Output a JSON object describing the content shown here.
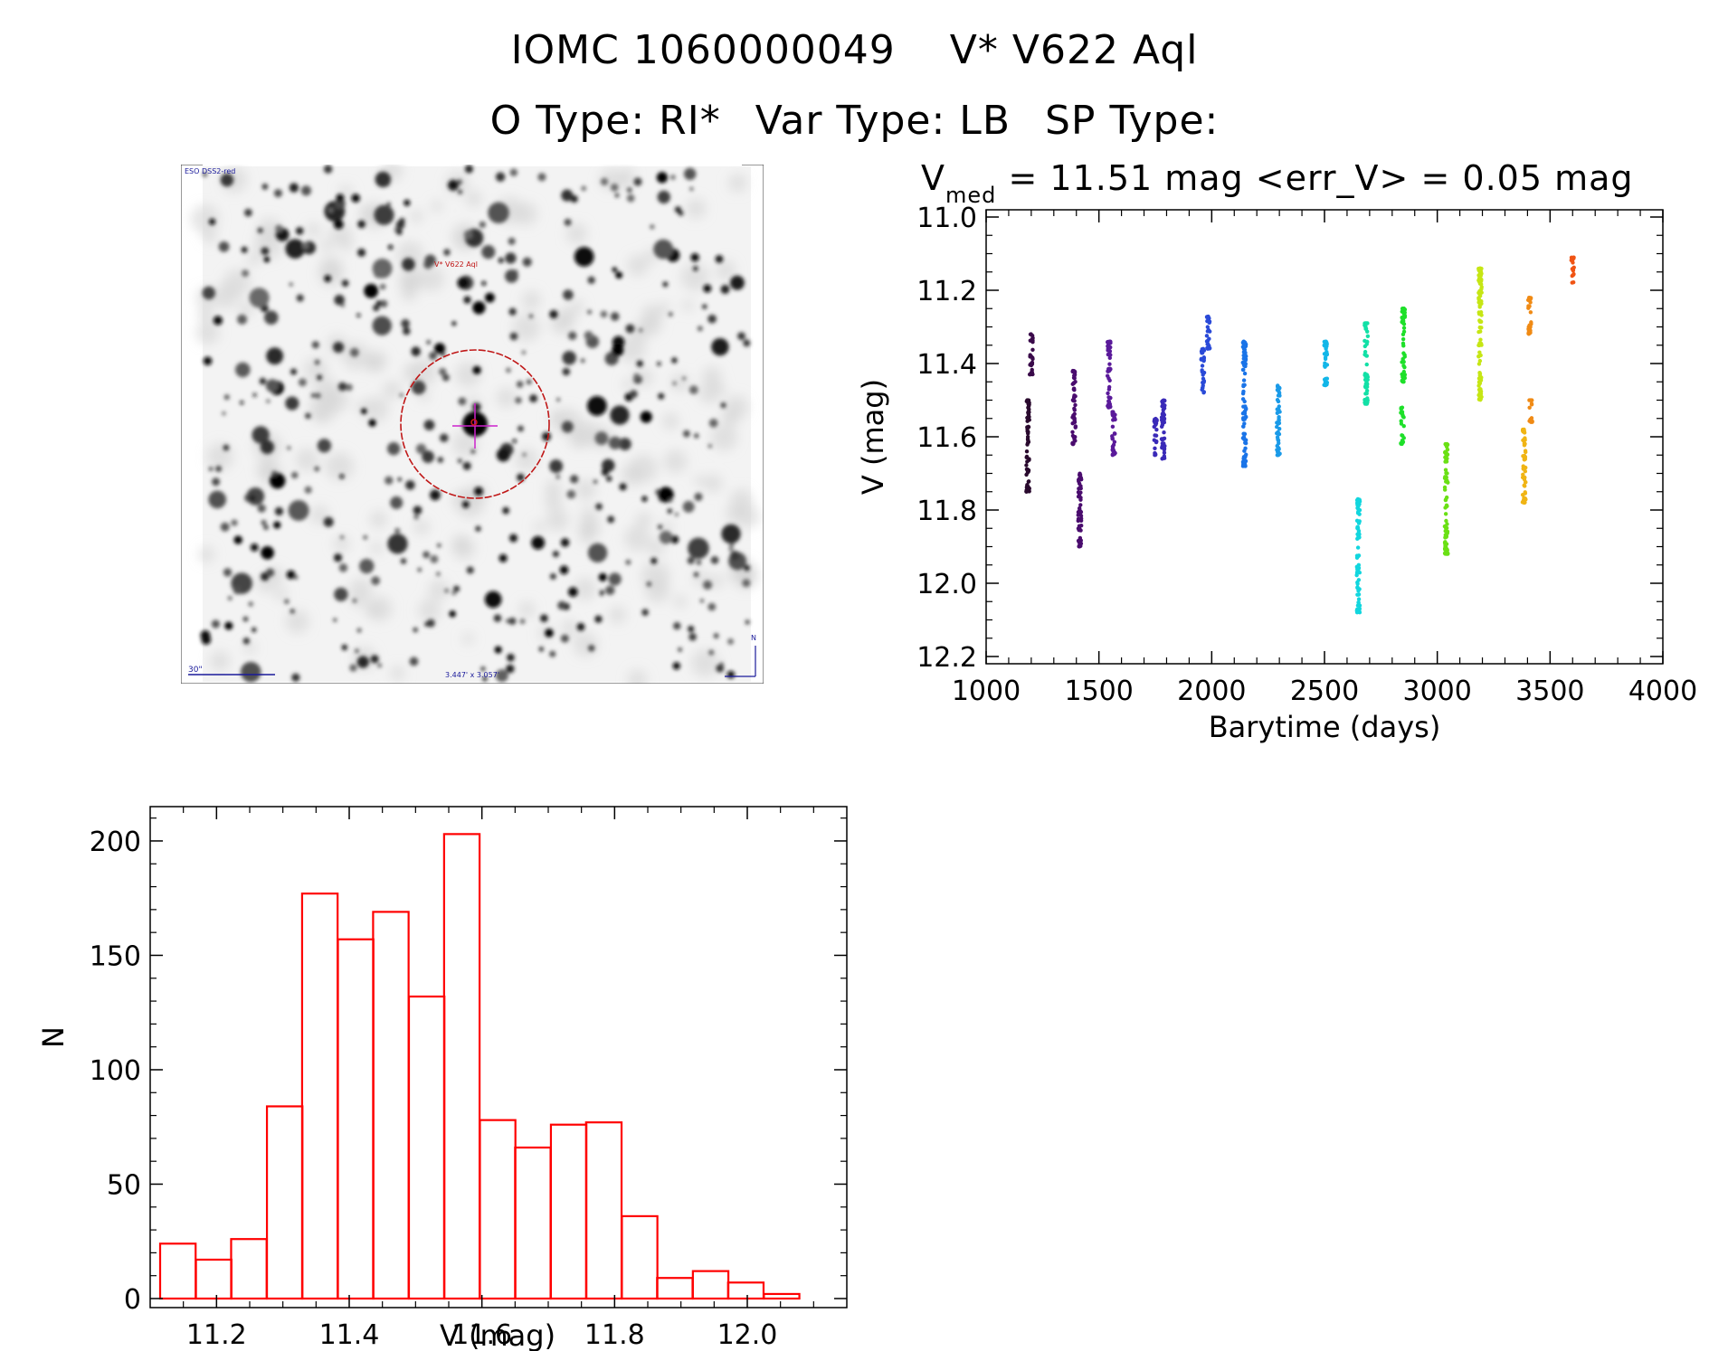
{
  "header": {
    "id": "IOMC 1060000049",
    "name": "V* V622 Aql",
    "otype": "O Type: RI*",
    "vartype": "Var Type: LB",
    "sptype": "SP Type:"
  },
  "image_panel": {
    "survey_label": "ESO DSS2-red",
    "target_label": "V* V622 Aql",
    "scale_label": "30\"",
    "fov_label": "3.447' x 3.057'",
    "north_label": "N"
  },
  "chart_data": [
    {
      "type": "scatter",
      "title_prefix": "V",
      "title_sub": "med",
      "title_rest": " = 11.51 mag <err_V> = 0.05 mag",
      "xlabel": "Barytime (days)",
      "ylabel": "V (mag)",
      "xlim": [
        1000,
        4000
      ],
      "ylim": [
        12.2,
        11.0
      ],
      "y_inverted": true,
      "xticks": [
        1000,
        1500,
        2000,
        2500,
        3000,
        3500,
        4000
      ],
      "yticks": [
        "11.0",
        "11.2",
        "11.4",
        "11.6",
        "11.8",
        "12.0",
        "12.2"
      ],
      "grid": false,
      "groups": [
        {
          "x": 1185,
          "ymin": 11.5,
          "ymax": 11.75,
          "color": "#2a0a2e"
        },
        {
          "x": 1200,
          "ymin": 11.32,
          "ymax": 11.43,
          "color": "#3a0a4a"
        },
        {
          "x": 1390,
          "ymin": 11.42,
          "ymax": 11.62,
          "color": "#4a0c6e"
        },
        {
          "x": 1415,
          "ymin": 11.7,
          "ymax": 11.9,
          "color": "#4a0c6e"
        },
        {
          "x": 1545,
          "ymin": 11.34,
          "ymax": 11.52,
          "color": "#5a1a9a"
        },
        {
          "x": 1565,
          "ymin": 11.53,
          "ymax": 11.65,
          "color": "#5a1a9a"
        },
        {
          "x": 1750,
          "ymin": 11.55,
          "ymax": 11.65,
          "color": "#3a2ab8"
        },
        {
          "x": 1785,
          "ymin": 11.5,
          "ymax": 11.66,
          "color": "#3a2ab8"
        },
        {
          "x": 1960,
          "ymin": 11.36,
          "ymax": 11.48,
          "color": "#2a4ad8"
        },
        {
          "x": 1985,
          "ymin": 11.27,
          "ymax": 11.36,
          "color": "#2a4ad8"
        },
        {
          "x": 2145,
          "ymin": 11.34,
          "ymax": 11.68,
          "color": "#1a74e8"
        },
        {
          "x": 2295,
          "ymin": 11.46,
          "ymax": 11.65,
          "color": "#1a9ae8"
        },
        {
          "x": 2505,
          "ymin": 11.34,
          "ymax": 11.46,
          "color": "#12b6e8"
        },
        {
          "x": 2650,
          "ymin": 11.77,
          "ymax": 12.08,
          "color": "#12d6de"
        },
        {
          "x": 2685,
          "ymin": 11.29,
          "ymax": 11.51,
          "color": "#12e0a6"
        },
        {
          "x": 2850,
          "ymin": 11.25,
          "ymax": 11.45,
          "color": "#1ee02a"
        },
        {
          "x": 2845,
          "ymin": 11.52,
          "ymax": 11.62,
          "color": "#1ee02a"
        },
        {
          "x": 3040,
          "ymin": 11.62,
          "ymax": 11.92,
          "color": "#6ae014"
        },
        {
          "x": 3190,
          "ymin": 11.14,
          "ymax": 11.5,
          "color": "#c6e614"
        },
        {
          "x": 3385,
          "ymin": 11.58,
          "ymax": 11.78,
          "color": "#f0b414"
        },
        {
          "x": 3410,
          "ymin": 11.22,
          "ymax": 11.32,
          "color": "#f08a14"
        },
        {
          "x": 3415,
          "ymin": 11.5,
          "ymax": 11.56,
          "color": "#f08a14"
        },
        {
          "x": 3600,
          "ymin": 11.11,
          "ymax": 11.18,
          "color": "#f05414"
        }
      ]
    },
    {
      "type": "bar",
      "title": "",
      "xlabel": "V (mag)",
      "ylabel": "N",
      "xlim": [
        11.1,
        12.15
      ],
      "ylim": [
        0,
        215
      ],
      "xticks": [
        "11.2",
        "11.4",
        "11.6",
        "11.8",
        "12.0"
      ],
      "yticks": [
        "0",
        "50",
        "100",
        "150",
        "200"
      ],
      "bin_width": 0.0535,
      "color": "#ff0000",
      "bins": [
        {
          "x0": 11.115,
          "value": 24
        },
        {
          "x0": 11.169,
          "value": 17
        },
        {
          "x0": 11.222,
          "value": 26
        },
        {
          "x0": 11.276,
          "value": 84
        },
        {
          "x0": 11.329,
          "value": 177
        },
        {
          "x0": 11.383,
          "value": 157
        },
        {
          "x0": 11.436,
          "value": 169
        },
        {
          "x0": 11.49,
          "value": 132
        },
        {
          "x0": 11.543,
          "value": 203
        },
        {
          "x0": 11.597,
          "value": 78
        },
        {
          "x0": 11.65,
          "value": 66
        },
        {
          "x0": 11.704,
          "value": 76
        },
        {
          "x0": 11.757,
          "value": 77
        },
        {
          "x0": 11.811,
          "value": 36
        },
        {
          "x0": 11.864,
          "value": 9
        },
        {
          "x0": 11.918,
          "value": 12
        },
        {
          "x0": 11.971,
          "value": 7
        },
        {
          "x0": 12.025,
          "value": 2
        }
      ]
    }
  ]
}
